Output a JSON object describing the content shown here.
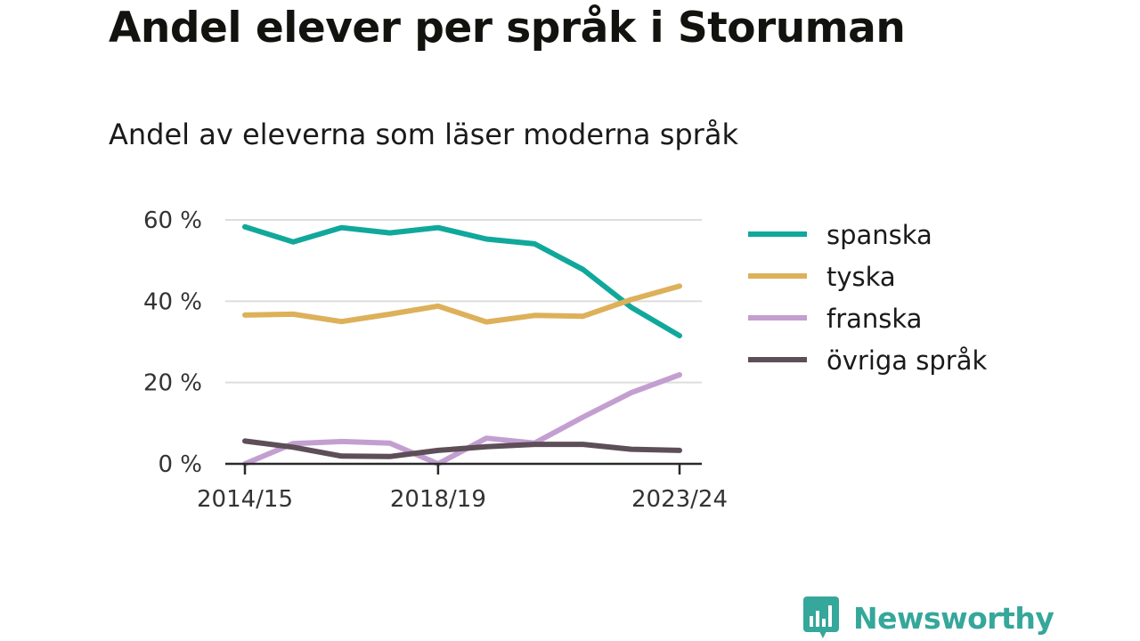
{
  "page": {
    "title": "Andel elever per språk i Storuman",
    "subtitle": "Andel av eleverna som läser moderna språk"
  },
  "chart_data": {
    "type": "line",
    "title": "Andel elever per språk i Storuman",
    "subtitle": "Andel av eleverna som läser moderna språk",
    "x": [
      "2014/15",
      "2015/16",
      "2016/17",
      "2017/18",
      "2018/19",
      "2019/20",
      "2020/21",
      "2021/22",
      "2022/23",
      "2023/24"
    ],
    "x_tick_labels": [
      "2014/15",
      "2018/19",
      "2023/24"
    ],
    "y_ticks": [
      0,
      20,
      40,
      60
    ],
    "y_tick_labels": [
      "0 %",
      "20 %",
      "40 %",
      "60 %"
    ],
    "ylim": [
      0,
      60
    ],
    "grid": true,
    "legend_position": "right",
    "series": [
      {
        "name": "spanska",
        "color": "#11a89c",
        "values": [
          58.3,
          54.6,
          58.1,
          56.8,
          58.1,
          55.3,
          54.1,
          47.8,
          38.5,
          31.5
        ]
      },
      {
        "name": "tyska",
        "color": "#ddb05a",
        "values": [
          36.6,
          36.8,
          35.0,
          36.8,
          38.8,
          34.9,
          36.5,
          36.3,
          40.4,
          43.7
        ]
      },
      {
        "name": "franska",
        "color": "#c39fd1",
        "values": [
          0.0,
          5.0,
          5.5,
          5.1,
          0.0,
          6.3,
          5.1,
          11.5,
          17.5,
          21.9
        ]
      },
      {
        "name": "övriga språk",
        "color": "#5d4e58",
        "values": [
          5.6,
          4.1,
          1.9,
          1.8,
          3.3,
          4.2,
          4.8,
          4.8,
          3.6,
          3.3
        ]
      }
    ]
  },
  "brand": {
    "name": "Newsworthy",
    "color": "#35a79b",
    "icon": "bar-chart-speech-bubble-icon"
  }
}
